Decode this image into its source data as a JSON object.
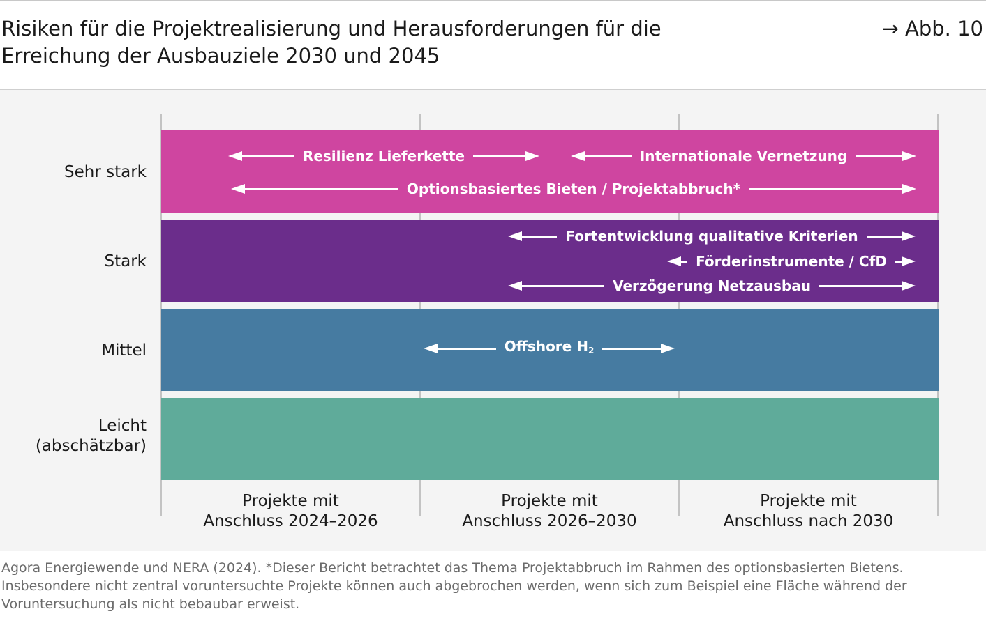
{
  "title": "Risiken für die Projektrealisierung und Herausforderungen für die Erreichung der Ausbauziele 2030 und 2045",
  "figure_ref": "→ Abb. 10",
  "rows": [
    {
      "label": "Sehr stark",
      "color": "#cf45a0"
    },
    {
      "label": "Stark",
      "color": "#6b2d8b"
    },
    {
      "label": "Mittel",
      "color": "#467ba1"
    },
    {
      "label": "Leicht\n(abschätzbar)",
      "color": "#5fab9a"
    }
  ],
  "columns": [
    {
      "label": "Projekte mit\nAnschluss 2024–2026"
    },
    {
      "label": "Projekte mit\nAnschluss 2026–2030"
    },
    {
      "label": "Projekte mit\nAnschluss nach 2030"
    }
  ],
  "arrows": [
    {
      "label": "Resilienz Lieferkette",
      "row": "Sehr stark"
    },
    {
      "label": "Internationale Vernetzung",
      "row": "Sehr stark"
    },
    {
      "label": "Optionsbasiertes Bieten / Projektabbruch*",
      "row": "Sehr stark"
    },
    {
      "label": "Fortentwicklung qualitative Kriterien",
      "row": "Stark"
    },
    {
      "label": "Förderinstrumente / CfD",
      "row": "Stark"
    },
    {
      "label": "Verzögerung Netzausbau",
      "row": "Stark"
    },
    {
      "label": "Offshore H",
      "subscript": "2",
      "row": "Mittel"
    }
  ],
  "source": "Agora Energiewende und NERA (2024). *Dieser Bericht betrachtet das Thema Projektabbruch im Rahmen des optionsbasierten Bietens. Insbesondere nicht zentral voruntersuchte Projekte können auch abgebrochen werden, wenn sich zum Beispiel eine Fläche während der Voruntersuchung als nicht bebaubar erweist."
}
